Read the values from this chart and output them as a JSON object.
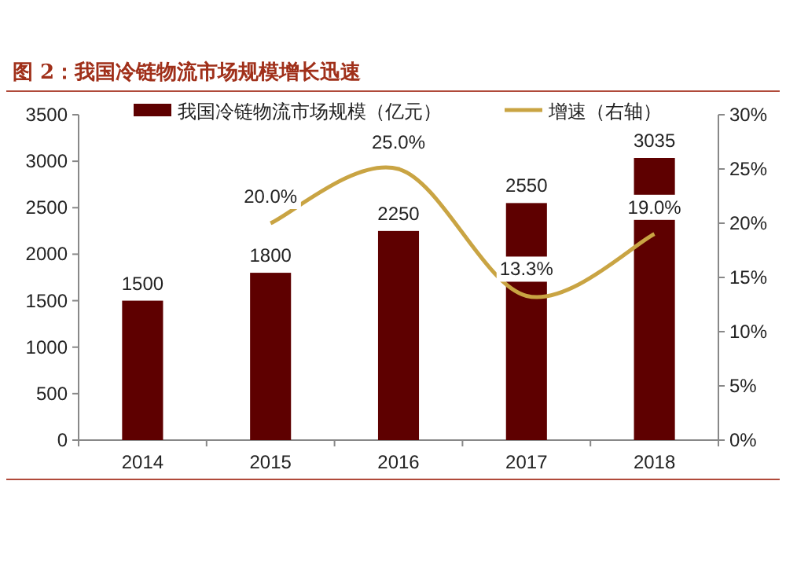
{
  "chart_data": {
    "type": "bar",
    "title": "图 2：我国冷链物流市场规模增长迅速",
    "categories": [
      "2014",
      "2015",
      "2016",
      "2017",
      "2018"
    ],
    "series": [
      {
        "name": "我国冷链物流市场规模（亿元）",
        "color": "#5e0000",
        "values": [
          1500,
          1800,
          2250,
          2550,
          3035
        ],
        "value_labels": [
          "1500",
          "1800",
          "2250",
          "2550",
          "3035"
        ]
      },
      {
        "name": "增速（右轴）",
        "type": "line",
        "axis": "y2",
        "color": "#c9a443",
        "values": [
          null,
          20.0,
          25.0,
          13.3,
          19.0
        ],
        "value_labels": [
          null,
          "20.0%",
          "25.0%",
          "13.3%",
          "19.0%"
        ]
      }
    ],
    "ylim": [
      0,
      3500
    ],
    "yticks": [
      0,
      500,
      1000,
      1500,
      2000,
      2500,
      3000,
      3500
    ],
    "y2lim": [
      0,
      30
    ],
    "y2ticks": [
      {
        "value": 0,
        "label": "0%"
      },
      {
        "value": 5,
        "label": "5%"
      },
      {
        "value": 10,
        "label": "10%"
      },
      {
        "value": 15,
        "label": "15%"
      },
      {
        "value": 20,
        "label": "20%"
      },
      {
        "value": 25,
        "label": "25%"
      },
      {
        "value": 30,
        "label": "30%"
      }
    ],
    "grid": false,
    "legend": "top"
  }
}
